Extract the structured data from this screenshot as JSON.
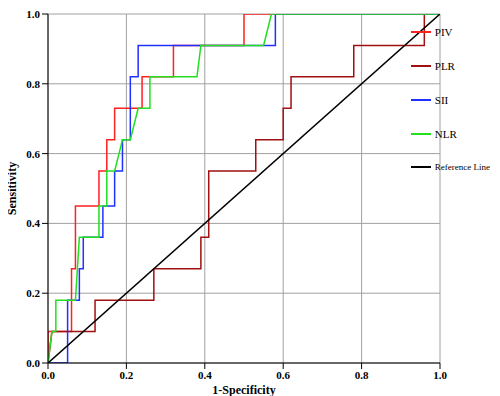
{
  "chart_data": {
    "type": "line",
    "x_label": "1-Specificity",
    "y_label": "Sensitivity",
    "xlim": [
      0,
      1
    ],
    "ylim": [
      0,
      1
    ],
    "xticks": [
      {
        "value": 0,
        "label": "0.0"
      },
      {
        "value": 0.2,
        "label": "0.2"
      },
      {
        "value": 0.4,
        "label": "0.4"
      },
      {
        "value": 0.6,
        "label": "0.6"
      },
      {
        "value": 0.8,
        "label": "0.8"
      },
      {
        "value": 1,
        "label": "1.0"
      }
    ],
    "yticks": [
      {
        "value": 0,
        "label": "0.0"
      },
      {
        "value": 0.2,
        "label": "0.2"
      },
      {
        "value": 0.4,
        "label": "0.4"
      },
      {
        "value": 0.6,
        "label": "0.6"
      },
      {
        "value": 0.8,
        "label": "0.8"
      },
      {
        "value": 1,
        "label": "1.0"
      }
    ],
    "grid": true,
    "legend": "right",
    "series": [
      {
        "name": "PIV",
        "color": "#ff2020",
        "x": [
          0,
          0,
          0.06,
          0.06,
          0.07,
          0.07,
          0.13,
          0.13,
          0.15,
          0.15,
          0.17,
          0.17,
          0.24,
          0.24,
          0.32,
          0.32,
          0.5,
          0.5,
          1
        ],
        "values": [
          0,
          0.09,
          0.09,
          0.27,
          0.27,
          0.45,
          0.45,
          0.55,
          0.55,
          0.64,
          0.64,
          0.73,
          0.73,
          0.82,
          0.82,
          0.91,
          0.91,
          1,
          1
        ]
      },
      {
        "name": "PLR",
        "color": "#a01010",
        "x": [
          0,
          0.01,
          0.12,
          0.12,
          0.27,
          0.27,
          0.39,
          0.39,
          0.41,
          0.41,
          0.53,
          0.53,
          0.6,
          0.6,
          0.62,
          0.62,
          0.78,
          0.78,
          0.96,
          0.96,
          1
        ],
        "values": [
          0,
          0.09,
          0.09,
          0.18,
          0.18,
          0.27,
          0.27,
          0.36,
          0.36,
          0.55,
          0.55,
          0.64,
          0.64,
          0.73,
          0.73,
          0.82,
          0.82,
          0.91,
          0.91,
          1,
          1
        ]
      },
      {
        "name": "SII",
        "color": "#2030ff",
        "x": [
          0,
          0.05,
          0.05,
          0.08,
          0.08,
          0.09,
          0.09,
          0.14,
          0.14,
          0.17,
          0.17,
          0.19,
          0.19,
          0.21,
          0.21,
          0.23,
          0.23,
          0.58,
          0.58,
          1
        ],
        "values": [
          0,
          0,
          0.18,
          0.18,
          0.27,
          0.27,
          0.36,
          0.36,
          0.45,
          0.45,
          0.55,
          0.55,
          0.64,
          0.64,
          0.82,
          0.82,
          0.91,
          0.91,
          1,
          1
        ]
      },
      {
        "name": "NLR",
        "color": "#20e020",
        "x": [
          0,
          0.01,
          0.02,
          0.02,
          0.07,
          0.08,
          0.13,
          0.13,
          0.15,
          0.15,
          0.17,
          0.19,
          0.21,
          0.23,
          0.26,
          0.26,
          0.38,
          0.39,
          0.55,
          0.57,
          1
        ],
        "values": [
          0,
          0.09,
          0.09,
          0.18,
          0.18,
          0.36,
          0.36,
          0.45,
          0.45,
          0.55,
          0.55,
          0.64,
          0.64,
          0.73,
          0.73,
          0.82,
          0.82,
          0.91,
          0.91,
          1,
          1
        ]
      },
      {
        "name": "Reference Line",
        "color": "#000000",
        "x": [
          0,
          1
        ],
        "values": [
          0,
          1
        ]
      }
    ]
  }
}
